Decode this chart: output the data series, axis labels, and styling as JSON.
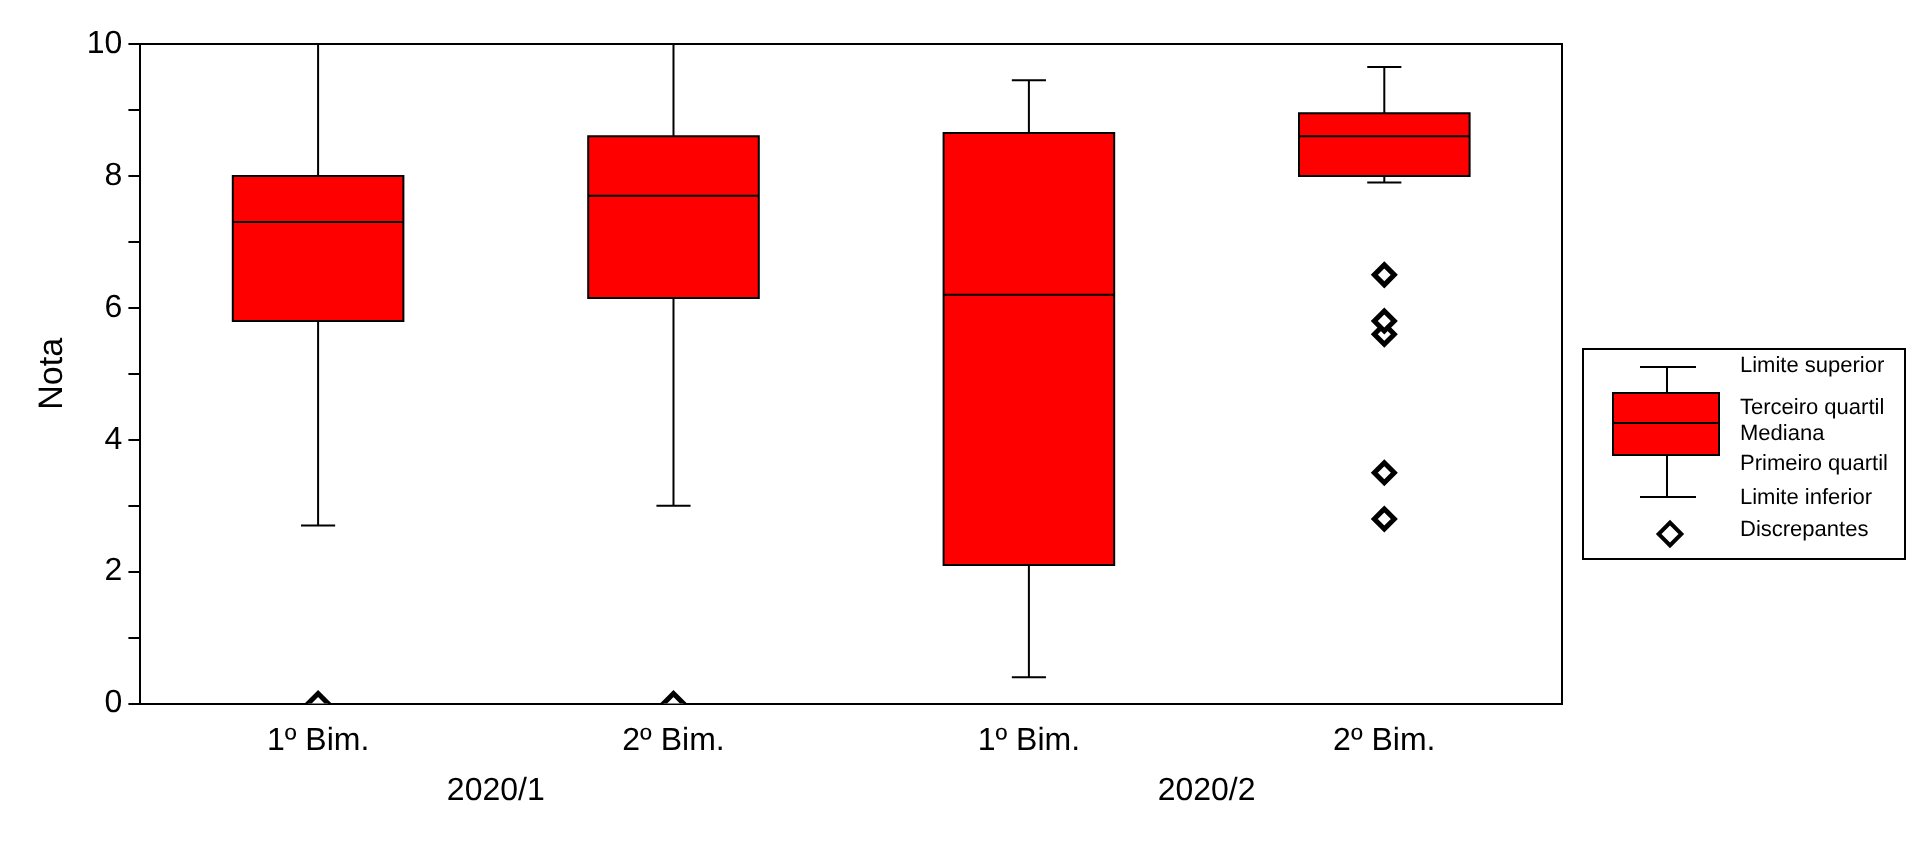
{
  "chart_data": {
    "type": "box",
    "ylabel": "Nota",
    "categories": [
      "1º Bim.",
      "2º Bim.",
      "1º Bim.",
      "2º Bim."
    ],
    "color": "#ff0000",
    "boxes": [
      {
        "low": 2.7,
        "q1": 5.8,
        "median": 7.3,
        "q3": 8.0,
        "high": 10,
        "outliers": [
          0
        ]
      },
      {
        "low": 3.0,
        "q1": 6.15,
        "median": 7.7,
        "q3": 8.6,
        "high": 10,
        "outliers": [
          0
        ]
      },
      {
        "low": 0.4,
        "q1": 2.1,
        "median": 6.2,
        "q3": 8.65,
        "high": 9.45
      },
      {
        "low": 7.9,
        "q1": 8.0,
        "median": 8.6,
        "q3": 8.95,
        "high": 9.65,
        "outliers": [
          6.5,
          5.8,
          5.6,
          3.5,
          2.8
        ]
      }
    ],
    "ylim": [
      0,
      10
    ],
    "yticks": [
      0,
      {
        "value": 1,
        "label": null
      },
      2,
      {
        "value": 3,
        "label": null
      },
      4,
      {
        "value": 5,
        "label": null
      },
      6,
      {
        "value": 7,
        "label": null
      },
      8,
      {
        "value": 9,
        "label": null
      },
      10
    ],
    "marker": "diamond",
    "grid": false,
    "legend": false,
    "annotations": [
      "2020/1",
      "2020/2",
      "Limite superior",
      "Terceiro quartil",
      "Mediana",
      "Primeiro quartil",
      "Limite inferior",
      "Discrepantes"
    ]
  }
}
